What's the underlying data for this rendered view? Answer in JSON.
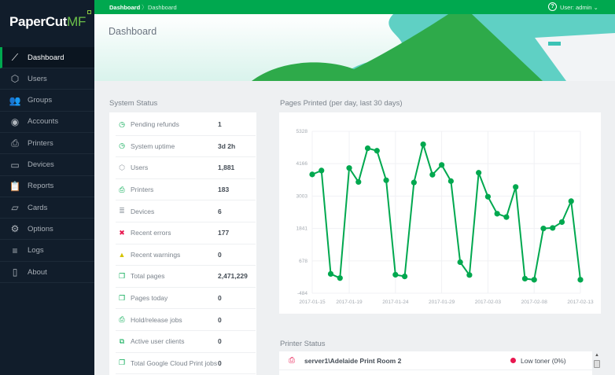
{
  "app": {
    "logo": "PaperCut",
    "logo_suffix": "MF"
  },
  "topbar": {
    "breadcrumb": [
      "Dashboard",
      "Dashboard"
    ],
    "user": "User: admin"
  },
  "page": {
    "title": "Dashboard"
  },
  "sidebar": {
    "items": [
      {
        "label": "Dashboard",
        "icon": "chart-line-icon",
        "glyph": "⟋",
        "active": true
      },
      {
        "label": "Users",
        "icon": "user-shield-icon",
        "glyph": "⬡"
      },
      {
        "label": "Groups",
        "icon": "groups-icon",
        "glyph": "👥"
      },
      {
        "label": "Accounts",
        "icon": "account-icon",
        "glyph": "◉"
      },
      {
        "label": "Printers",
        "icon": "printer-icon",
        "glyph": "⎙"
      },
      {
        "label": "Devices",
        "icon": "device-icon",
        "glyph": "▭"
      },
      {
        "label": "Reports",
        "icon": "clipboard-icon",
        "glyph": "📋"
      },
      {
        "label": "Cards",
        "icon": "cards-icon",
        "glyph": "▱"
      },
      {
        "label": "Options",
        "icon": "gear-icon",
        "glyph": "⚙"
      },
      {
        "label": "Logs",
        "icon": "logs-icon",
        "glyph": "≡"
      },
      {
        "label": "About",
        "icon": "book-icon",
        "glyph": "▯"
      }
    ]
  },
  "system_status": {
    "title": "System Status",
    "rows": [
      {
        "label": "Pending refunds",
        "value": "1",
        "icon": "clock-icon",
        "glyph": "◷",
        "color": "#00a84f"
      },
      {
        "label": "System uptime",
        "value": "3d 2h",
        "icon": "clock-icon",
        "glyph": "◷",
        "color": "#00a84f"
      },
      {
        "label": "Users",
        "value": "1,881",
        "icon": "user-icon",
        "glyph": "⬡",
        "color": "#9aa1a8"
      },
      {
        "label": "Printers",
        "value": "183",
        "icon": "printer-icon",
        "glyph": "⎙",
        "color": "#00a84f"
      },
      {
        "label": "Devices",
        "value": "6",
        "icon": "database-icon",
        "glyph": "≣",
        "color": "#9aa1a8"
      },
      {
        "label": "Recent errors",
        "value": "177",
        "icon": "error-icon",
        "glyph": "✖",
        "color": "#e8174f"
      },
      {
        "label": "Recent warnings",
        "value": "0",
        "icon": "warning-icon",
        "glyph": "▲",
        "color": "#d4c300"
      },
      {
        "label": "Total pages",
        "value": "2,471,229",
        "icon": "pages-icon",
        "glyph": "❐",
        "color": "#00a84f"
      },
      {
        "label": "Pages today",
        "value": "0",
        "icon": "pages-icon",
        "glyph": "❐",
        "color": "#00a84f"
      },
      {
        "label": "Hold/release jobs",
        "value": "0",
        "icon": "printer-icon",
        "glyph": "⎙",
        "color": "#00a84f"
      },
      {
        "label": "Active user clients",
        "value": "0",
        "icon": "clients-icon",
        "glyph": "⧉",
        "color": "#00a84f"
      },
      {
        "label": "Total Google Cloud Print jobs",
        "value": "0",
        "icon": "pages-icon",
        "glyph": "❐",
        "color": "#00a84f"
      }
    ]
  },
  "chart_data": {
    "type": "line",
    "title": "Pages Printed (per day, last 30 days)",
    "x": [
      "2017-01-15",
      "2017-01-16",
      "2017-01-17",
      "2017-01-18",
      "2017-01-19",
      "2017-01-20",
      "2017-01-21",
      "2017-01-22",
      "2017-01-23",
      "2017-01-24",
      "2017-01-25",
      "2017-01-26",
      "2017-01-27",
      "2017-01-28",
      "2017-01-29",
      "2017-01-30",
      "2017-01-31",
      "2017-02-01",
      "2017-02-02",
      "2017-02-03",
      "2017-02-04",
      "2017-02-05",
      "2017-02-06",
      "2017-02-07",
      "2017-02-08",
      "2017-02-09",
      "2017-02-10",
      "2017-02-11",
      "2017-02-12",
      "2017-02-13"
    ],
    "values": [
      3780,
      3920,
      210,
      60,
      4010,
      3510,
      4720,
      4630,
      3570,
      180,
      120,
      3490,
      4860,
      3770,
      4120,
      3540,
      630,
      170,
      3840,
      2980,
      2370,
      2250,
      3330,
      40,
      0,
      1840,
      1860,
      2070,
      2820,
      0
    ],
    "x_ticks": [
      "2017-01-15",
      "2017-01-19",
      "2017-01-24",
      "2017-01-29",
      "2017-02-03",
      "2017-02-08",
      "2017-02-13"
    ],
    "y_ticks": [
      5328,
      4166,
      3003,
      1841,
      678,
      -484
    ],
    "ylim": [
      -484,
      5328
    ],
    "grid": true,
    "color": "#00a84f"
  },
  "printer_status": {
    "title": "Printer Status",
    "rows": [
      {
        "name": "server1\\Adelaide Print Room 2",
        "status": "Low toner (0%)",
        "status_color": "#e8174f"
      }
    ]
  }
}
